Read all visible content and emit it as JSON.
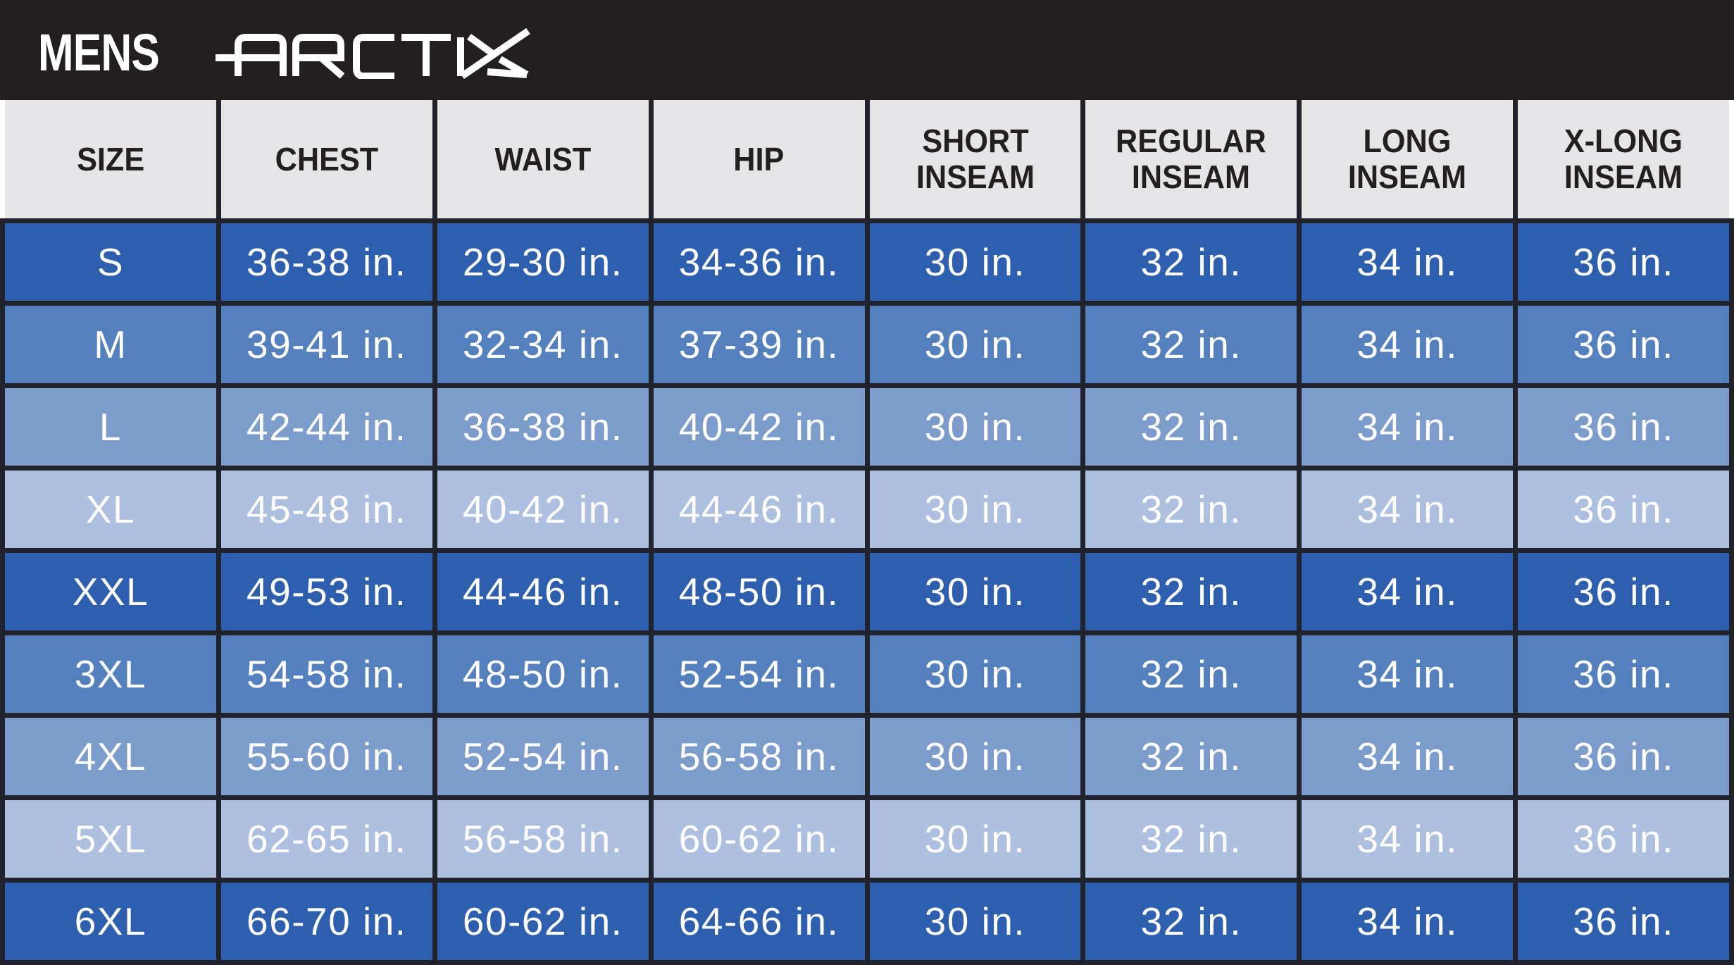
{
  "brand_bar": {
    "category_label": "MENS",
    "logo_text": "ARCTIX"
  },
  "size_chart": {
    "columns": [
      "SIZE",
      "CHEST",
      "WAIST",
      "HIP",
      "SHORT INSEAM",
      "REGULAR INSEAM",
      "LONG INSEAM",
      "X-LONG INSEAM"
    ],
    "rows": [
      {
        "size": "S",
        "chest": "36-38 in.",
        "waist": "29-30 in.",
        "hip": "34-36 in.",
        "short_inseam": "30 in.",
        "regular_inseam": "32 in.",
        "long_inseam": "34 in.",
        "xlong_inseam": "36 in.",
        "shade": 0
      },
      {
        "size": "M",
        "chest": "39-41 in.",
        "waist": "32-34 in.",
        "hip": "37-39 in.",
        "short_inseam": "30 in.",
        "regular_inseam": "32 in.",
        "long_inseam": "34 in.",
        "xlong_inseam": "36 in.",
        "shade": 1
      },
      {
        "size": "L",
        "chest": "42-44 in.",
        "waist": "36-38 in.",
        "hip": "40-42 in.",
        "short_inseam": "30 in.",
        "regular_inseam": "32 in.",
        "long_inseam": "34 in.",
        "xlong_inseam": "36 in.",
        "shade": 2
      },
      {
        "size": "XL",
        "chest": "45-48 in.",
        "waist": "40-42 in.",
        "hip": "44-46 in.",
        "short_inseam": "30 in.",
        "regular_inseam": "32 in.",
        "long_inseam": "34 in.",
        "xlong_inseam": "36 in.",
        "shade": 3
      },
      {
        "size": "XXL",
        "chest": "49-53 in.",
        "waist": "44-46 in.",
        "hip": "48-50 in.",
        "short_inseam": "30 in.",
        "regular_inseam": "32 in.",
        "long_inseam": "34 in.",
        "xlong_inseam": "36 in.",
        "shade": 0
      },
      {
        "size": "3XL",
        "chest": "54-58 in.",
        "waist": "48-50 in.",
        "hip": "52-54 in.",
        "short_inseam": "30 in.",
        "regular_inseam": "32 in.",
        "long_inseam": "34 in.",
        "xlong_inseam": "36 in.",
        "shade": 1
      },
      {
        "size": "4XL",
        "chest": "55-60 in.",
        "waist": "52-54 in.",
        "hip": "56-58 in.",
        "short_inseam": "30 in.",
        "regular_inseam": "32 in.",
        "long_inseam": "34 in.",
        "xlong_inseam": "36 in.",
        "shade": 2
      },
      {
        "size": "5XL",
        "chest": "62-65 in.",
        "waist": "56-58 in.",
        "hip": "60-62 in.",
        "short_inseam": "30 in.",
        "regular_inseam": "32 in.",
        "long_inseam": "34 in.",
        "xlong_inseam": "36 in.",
        "shade": 3
      },
      {
        "size": "6XL",
        "chest": "66-70 in.",
        "waist": "60-62 in.",
        "hip": "64-66 in.",
        "short_inseam": "30 in.",
        "regular_inseam": "32 in.",
        "long_inseam": "34 in.",
        "xlong_inseam": "36 in.",
        "shade": 0
      }
    ]
  },
  "colors": {
    "bar_background": "#231f20",
    "header_background": "#e5e5e8",
    "header_text": "#231f20",
    "grid_line": "#20222c",
    "cell_text": "#ffffff",
    "row_shades": [
      "#2d5fae",
      "#5480bd",
      "#7c9ccb",
      "#aec0e0"
    ]
  }
}
